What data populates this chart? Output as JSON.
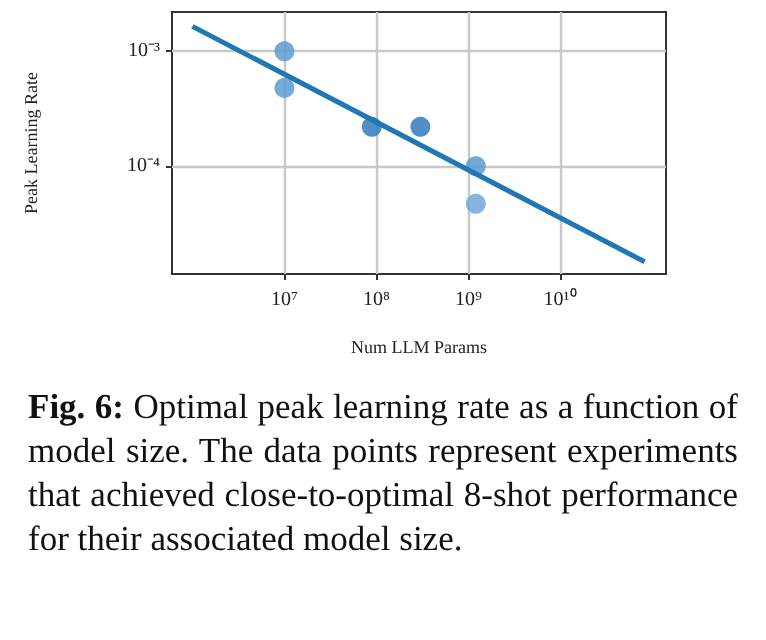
{
  "chart_data": {
    "type": "scatter",
    "xlabel": "Num LLM Params",
    "ylabel": "Peak Learning Rate",
    "log": "xy",
    "grid": true,
    "marker": "circle",
    "xlim": [
      600000,
      140000000000
    ],
    "ylim": [
      1.15e-05,
      0.0022
    ],
    "xticks": [
      {
        "value": 10000000,
        "label": "10⁷"
      },
      {
        "value": 100000000,
        "label": "10⁸"
      },
      {
        "value": 1000000000,
        "label": "10⁹"
      },
      {
        "value": 10000000000,
        "label": "10¹⁰"
      }
    ],
    "yticks": [
      {
        "value": 0.0001,
        "label": "10⁻⁴"
      },
      {
        "value": 0.001,
        "label": "10⁻³"
      }
    ],
    "series": [
      {
        "x": [
          10000000,
          10000000,
          89000000,
          300000000,
          1200000000,
          1200000000
        ],
        "values": [
          0.001,
          0.00048,
          0.00022,
          0.00022,
          0.0001,
          4.7e-05
        ],
        "colors": [
          "#5b9bd0",
          "#5b9bd0",
          "#2f7dbd",
          "#2f7dbd",
          "#5b9bd0",
          "#6fa8d8"
        ]
      },
      {
        "type": "line",
        "color": "#1f77b4",
        "marker": "none",
        "line_style": "solid",
        "x": [
          1000000,
          82000000000
        ],
        "values": [
          0.00165,
          1.47e-05
        ]
      }
    ],
    "annotations": [
      "Fig. 6: Optimal peak learning rate as a function of model size. The data points represent experiments that achieved close-to-optimal 8-shot performance for their associated model size."
    ]
  }
}
